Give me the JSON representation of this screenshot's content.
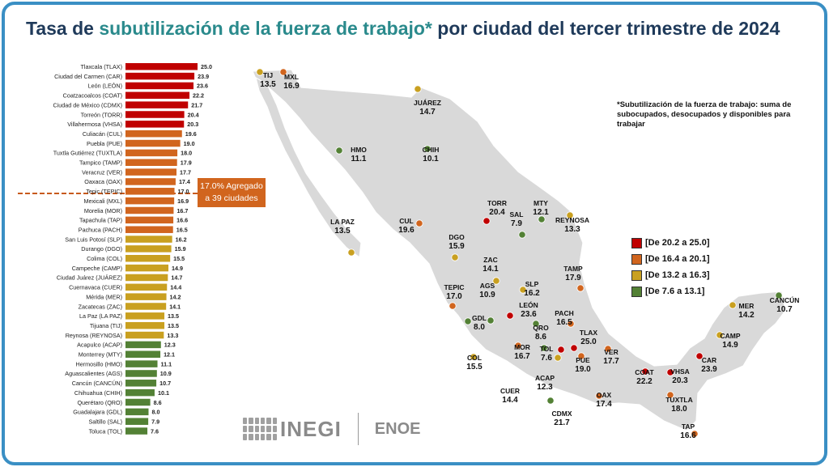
{
  "title_pre": "Tasa de ",
  "title_hl": "subutilización de la fuerza de trabajo*",
  "title_post": " por ciudad del tercer trimestre de 2024",
  "note": "*Subutilización de la fuerza de trabajo: suma de subocupados, desocupados y disponibles para trabajar",
  "aggregate_label": "17.0% Agregado a 39 ciudades",
  "logo_text": "INEGI",
  "logo_sub": "ENOE",
  "colors": {
    "red": "#c00000",
    "orange": "#d1651e",
    "yellow": "#c9a020",
    "green": "#538135",
    "frame": "#3a8fc4",
    "map": "#d9d9d9"
  },
  "legend": [
    {
      "label": "[De 20.2 a 25.0]",
      "color": "#c00000"
    },
    {
      "label": "[De 16.4 a 20.1]",
      "color": "#d1651e"
    },
    {
      "label": "[De 13.2 a 16.3]",
      "color": "#c9a020"
    },
    {
      "label": "[De 7.6 a 13.1]",
      "color": "#538135"
    }
  ],
  "chart_data": {
    "type": "bar",
    "orientation": "horizontal",
    "aggregate": 17.0,
    "categories": [
      "Tlaxcala (TLAX)",
      "Ciudad del Carmen (CAR)",
      "León (LEÓN)",
      "Coatzacoalcos (COAT)",
      "Ciudad de México (CDMX)",
      "Torreón (TORR)",
      "Villahermosa (VHSA)",
      "Culiacán (CUL)",
      "Puebla (PUE)",
      "Tuxtla Gutiérrez (TUXTLA)",
      "Tampico (TAMP)",
      "Veracruz (VER)",
      "Oaxaca (OAX)",
      "Tepic (TEPIC)",
      "Mexicali (MXL)",
      "Morelia (MOR)",
      "Tapachula (TAP)",
      "Pachuca (PACH)",
      "San Luis Potosí (SLP)",
      "Durango (DGO)",
      "Colima (COL)",
      "Campeche (CAMP)",
      "Ciudad Juárez (JUÁREZ)",
      "Cuernavaca (CUER)",
      "Mérida (MER)",
      "Zacatecas (ZAC)",
      "La Paz (LA PAZ)",
      "Tijuana (TIJ)",
      "Reynosa (REYNOSA)",
      "Acapulco (ACAP)",
      "Monterrey (MTY)",
      "Hermosillo (HMO)",
      "Aguascalientes (AGS)",
      "Cancún (CANCÚN)",
      "Chihuahua (CHIH)",
      "Querétaro (QRO)",
      "Guadalajara (GDL)",
      "Saltillo (SAL)",
      "Toluca (TOL)"
    ],
    "values": [
      25.0,
      23.9,
      23.6,
      22.2,
      21.7,
      20.4,
      20.3,
      19.6,
      19.0,
      18.0,
      17.9,
      17.7,
      17.4,
      17.0,
      16.9,
      16.7,
      16.6,
      16.5,
      16.2,
      15.9,
      15.5,
      14.9,
      14.7,
      14.4,
      14.2,
      14.1,
      13.5,
      13.5,
      13.3,
      12.3,
      12.1,
      11.1,
      10.9,
      10.7,
      10.1,
      8.6,
      8.0,
      7.9,
      7.6
    ],
    "value_labels": [
      "25.0",
      "23.9",
      "23.6",
      "22.2",
      "21.7",
      "20.4",
      "20.3",
      "19.6",
      "19.0",
      "18.0",
      "17.9",
      "17.7",
      "17.4",
      "17.0",
      "16.9",
      "16.7",
      "16.6",
      "16.5",
      "16.2",
      "15.9",
      "15.5",
      "14.9",
      "14.7",
      "14.4",
      "14.2",
      "14.1",
      "13.5",
      "13.5",
      "13.3",
      "12.3",
      "12.1",
      "11.1",
      "10.9",
      "10.7",
      "10.1",
      "8.6",
      "8.0",
      "7.9",
      "7.6"
    ]
  },
  "map_points": [
    {
      "code": "TIJ",
      "value": "13.5",
      "color": "#c9a020"
    },
    {
      "code": "MXL",
      "value": "16.9",
      "color": "#d1651e"
    },
    {
      "code": "JUÁREZ",
      "value": "14.7",
      "color": "#c9a020"
    },
    {
      "code": "HMO",
      "value": "11.1",
      "color": "#538135"
    },
    {
      "code": "CHIH",
      "value": "10.1",
      "color": "#538135"
    },
    {
      "code": "LA PAZ",
      "value": "13.5",
      "color": "#c9a020"
    },
    {
      "code": "CUL",
      "value": "19.6",
      "color": "#d1651e"
    },
    {
      "code": "TORR",
      "value": "20.4",
      "color": "#c00000"
    },
    {
      "code": "MTY",
      "value": "12.1",
      "color": "#538135"
    },
    {
      "code": "SAL",
      "value": "7.9",
      "color": "#538135"
    },
    {
      "code": "REYNOSA",
      "value": "13.3",
      "color": "#c9a020"
    },
    {
      "code": "DGO",
      "value": "15.9",
      "color": "#c9a020"
    },
    {
      "code": "ZAC",
      "value": "14.1",
      "color": "#c9a020"
    },
    {
      "code": "TAMP",
      "value": "17.9",
      "color": "#d1651e"
    },
    {
      "code": "TEPIC",
      "value": "17.0",
      "color": "#d1651e"
    },
    {
      "code": "AGS",
      "value": "10.9",
      "color": "#538135"
    },
    {
      "code": "SLP",
      "value": "16.2",
      "color": "#c9a020"
    },
    {
      "code": "LEÓN",
      "value": "23.6",
      "color": "#c00000"
    },
    {
      "code": "GDL",
      "value": "8.0",
      "color": "#538135"
    },
    {
      "code": "QRO",
      "value": "8.6",
      "color": "#538135"
    },
    {
      "code": "PACH",
      "value": "16.5",
      "color": "#d1651e"
    },
    {
      "code": "TLAX",
      "value": "25.0",
      "color": "#c00000"
    },
    {
      "code": "MOR",
      "value": "16.7",
      "color": "#d1651e"
    },
    {
      "code": "TOL",
      "value": "7.6",
      "color": "#538135"
    },
    {
      "code": "PUE",
      "value": "19.0",
      "color": "#d1651e"
    },
    {
      "code": "VER",
      "value": "17.7",
      "color": "#d1651e"
    },
    {
      "code": "COL",
      "value": "15.5",
      "color": "#c9a020"
    },
    {
      "code": "CDMX",
      "value": "21.7",
      "color": "#c00000"
    },
    {
      "code": "ACAP",
      "value": "12.3",
      "color": "#538135"
    },
    {
      "code": "CUER",
      "value": "14.4",
      "color": "#c9a020"
    },
    {
      "code": "OAX",
      "value": "17.4",
      "color": "#d1651e"
    },
    {
      "code": "COAT",
      "value": "22.2",
      "color": "#c00000"
    },
    {
      "code": "VHSA",
      "value": "20.3",
      "color": "#c00000"
    },
    {
      "code": "CAR",
      "value": "23.9",
      "color": "#c00000"
    },
    {
      "code": "TUXTLA",
      "value": "18.0",
      "color": "#d1651e"
    },
    {
      "code": "TAP",
      "value": "16.6",
      "color": "#d1651e"
    },
    {
      "code": "CAMP",
      "value": "14.9",
      "color": "#c9a020"
    },
    {
      "code": "MER",
      "value": "14.2",
      "color": "#c9a020"
    },
    {
      "code": "CANCÚN",
      "value": "10.7",
      "color": "#538135"
    }
  ]
}
